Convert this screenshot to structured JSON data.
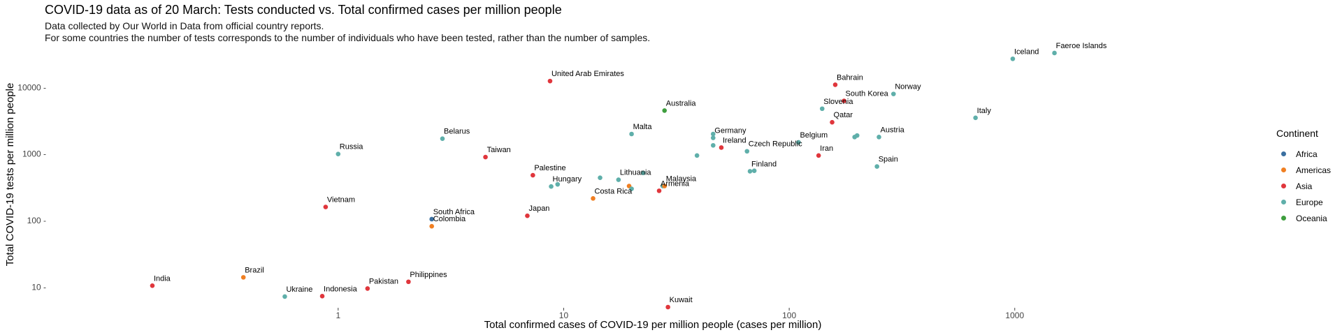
{
  "chart_data": {
    "type": "scatter",
    "title": "COVID-19 data as of 20 March: Tests conducted vs. Total confirmed cases per million people",
    "subtitle_lines": [
      "Data collected by Our World in Data from official country reports.",
      "For some countries the number of tests corresponds to the number of individuals who have been tested, rather than the number of samples."
    ],
    "xlabel": "Total confirmed cases of COVID-19 per million people (cases per million)",
    "ylabel": "Total COVID-19 tests per million people",
    "x_scale": "log",
    "y_scale": "log",
    "xlim": [
      0.05,
      12000
    ],
    "ylim": [
      5,
      40000
    ],
    "x_ticks": [
      1,
      10,
      100,
      1000
    ],
    "x_tick_labels": [
      "1",
      "10",
      "100",
      "1000"
    ],
    "y_ticks": [
      10,
      100,
      1000,
      10000
    ],
    "y_tick_labels": [
      "10 -",
      "100 -",
      "1000 -",
      "10000 -"
    ],
    "grid": false,
    "legend": {
      "title": "Continent",
      "position": "right",
      "entries": [
        {
          "name": "Africa",
          "color": "#3a6fa0"
        },
        {
          "name": "Americas",
          "color": "#f07f22"
        },
        {
          "name": "Asia",
          "color": "#e0363c"
        },
        {
          "name": "Europe",
          "color": "#5fafaa"
        },
        {
          "name": "Oceania",
          "color": "#3e9e3e"
        }
      ]
    },
    "points": [
      {
        "label": "India",
        "x": 0.15,
        "y": 10.5,
        "continent": "Asia"
      },
      {
        "label": "Brazil",
        "x": 0.38,
        "y": 14,
        "continent": "Americas"
      },
      {
        "label": "Ukraine",
        "x": 0.58,
        "y": 7.2,
        "continent": "Europe"
      },
      {
        "label": "Indonesia",
        "x": 0.85,
        "y": 7.3,
        "continent": "Asia"
      },
      {
        "label": "Vietnam",
        "x": 0.88,
        "y": 160,
        "continent": "Asia"
      },
      {
        "label": "Russia",
        "x": 1.0,
        "y": 1000,
        "continent": "Europe"
      },
      {
        "label": "Pakistan",
        "x": 1.35,
        "y": 9.5,
        "continent": "Asia"
      },
      {
        "label": "Philippines",
        "x": 2.05,
        "y": 12,
        "continent": "Asia"
      },
      {
        "label": "South Africa",
        "x": 2.6,
        "y": 105,
        "continent": "Africa"
      },
      {
        "label": "Colombia",
        "x": 2.6,
        "y": 82,
        "continent": "Americas"
      },
      {
        "label": "Belarus",
        "x": 2.9,
        "y": 1700,
        "continent": "Europe"
      },
      {
        "label": "Taiwan",
        "x": 4.5,
        "y": 900,
        "continent": "Asia"
      },
      {
        "label": "Japan",
        "x": 6.9,
        "y": 118,
        "continent": "Asia"
      },
      {
        "label": "Palestine",
        "x": 7.3,
        "y": 480,
        "continent": "Asia"
      },
      {
        "label": "United Arab Emirates",
        "x": 8.7,
        "y": 12500,
        "continent": "Asia"
      },
      {
        "label": "Hungary",
        "x": 8.8,
        "y": 325,
        "continent": "Europe"
      },
      {
        "label": "",
        "x": 9.4,
        "y": 350,
        "continent": "Europe"
      },
      {
        "label": "Costa Rica",
        "x": 13.5,
        "y": 215,
        "continent": "Americas"
      },
      {
        "label": "",
        "x": 14.5,
        "y": 440,
        "continent": "Europe"
      },
      {
        "label": "Lithuania",
        "x": 17.5,
        "y": 410,
        "continent": "Europe"
      },
      {
        "label": "",
        "x": 19.5,
        "y": 330,
        "continent": "Americas"
      },
      {
        "label": "",
        "x": 20,
        "y": 300,
        "continent": "Europe"
      },
      {
        "label": "Malta",
        "x": 20,
        "y": 2000,
        "continent": "Europe"
      },
      {
        "label": "",
        "x": 22.5,
        "y": 520,
        "continent": "Europe"
      },
      {
        "label": "Armenia",
        "x": 26.5,
        "y": 280,
        "continent": "Asia"
      },
      {
        "label": "",
        "x": 27.5,
        "y": 330,
        "continent": "Europe"
      },
      {
        "label": "Malaysia",
        "x": 28,
        "y": 330,
        "continent": "Americas"
      },
      {
        "label": "Australia",
        "x": 28,
        "y": 4500,
        "continent": "Oceania"
      },
      {
        "label": "Kuwait",
        "x": 29,
        "y": 5,
        "continent": "Asia"
      },
      {
        "label": "",
        "x": 39,
        "y": 950,
        "continent": "Europe"
      },
      {
        "label": "",
        "x": 46,
        "y": 1350,
        "continent": "Europe"
      },
      {
        "label": "Germany",
        "x": 46,
        "y": 1750,
        "continent": "Europe"
      },
      {
        "label": "",
        "x": 46,
        "y": 2000,
        "continent": "Europe"
      },
      {
        "label": "Ireland",
        "x": 50,
        "y": 1250,
        "continent": "Asia"
      },
      {
        "label": "Czech Republic",
        "x": 65,
        "y": 1100,
        "continent": "Europe"
      },
      {
        "label": "Finland",
        "x": 67,
        "y": 550,
        "continent": "Europe"
      },
      {
        "label": "",
        "x": 70,
        "y": 560,
        "continent": "Europe"
      },
      {
        "label": "Belgium",
        "x": 110,
        "y": 1500,
        "continent": "Europe"
      },
      {
        "label": "Iran",
        "x": 135,
        "y": 950,
        "continent": "Asia"
      },
      {
        "label": "Slovenia",
        "x": 140,
        "y": 4800,
        "continent": "Europe"
      },
      {
        "label": "Qatar",
        "x": 155,
        "y": 3000,
        "continent": "Asia"
      },
      {
        "label": "Bahrain",
        "x": 160,
        "y": 11000,
        "continent": "Asia"
      },
      {
        "label": "South Korea",
        "x": 175,
        "y": 6300,
        "continent": "Asia"
      },
      {
        "label": "",
        "x": 195,
        "y": 1800,
        "continent": "Europe"
      },
      {
        "label": "",
        "x": 200,
        "y": 1900,
        "continent": "Europe"
      },
      {
        "label": "Spain",
        "x": 245,
        "y": 650,
        "continent": "Europe"
      },
      {
        "label": "Austria",
        "x": 250,
        "y": 1800,
        "continent": "Europe"
      },
      {
        "label": "Norway",
        "x": 290,
        "y": 8000,
        "continent": "Europe"
      },
      {
        "label": "Italy",
        "x": 670,
        "y": 3500,
        "continent": "Europe"
      },
      {
        "label": "Iceland",
        "x": 980,
        "y": 27000,
        "continent": "Europe"
      },
      {
        "label": "Faeroe Islands",
        "x": 1500,
        "y": 33000,
        "continent": "Europe"
      }
    ]
  }
}
